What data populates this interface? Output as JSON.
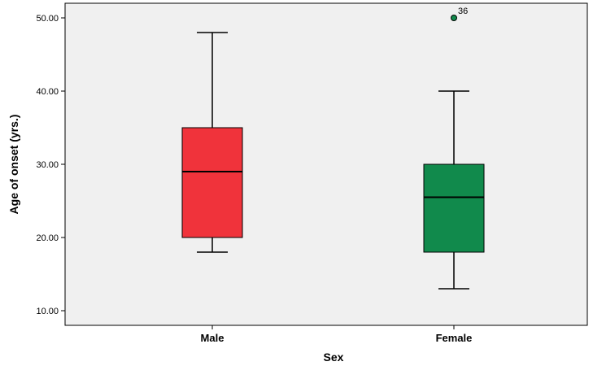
{
  "chart_data": {
    "type": "boxplot",
    "title": "",
    "xlabel": "Sex",
    "ylabel": "Age of onset (yrs.)",
    "ylim": [
      8,
      52
    ],
    "yticks": [
      10,
      20,
      30,
      40,
      50
    ],
    "ytick_labels": [
      "10.00",
      "20.00",
      "30.00",
      "40.00",
      "50.00"
    ],
    "categories": [
      "Male",
      "Female"
    ],
    "boxes": [
      {
        "category": "Male",
        "whisker_low": 18,
        "q1": 20,
        "median": 29,
        "q3": 35,
        "whisker_high": 48,
        "color": "#f0333b",
        "outliers": []
      },
      {
        "category": "Female",
        "whisker_low": 13,
        "q1": 18,
        "median": 25.5,
        "q3": 30,
        "whisker_high": 40,
        "color": "#118a4c",
        "outliers": [
          {
            "value": 50,
            "label": "36"
          }
        ]
      }
    ],
    "plot_background": "#f0f0f0",
    "grid": false,
    "legend": "none"
  }
}
